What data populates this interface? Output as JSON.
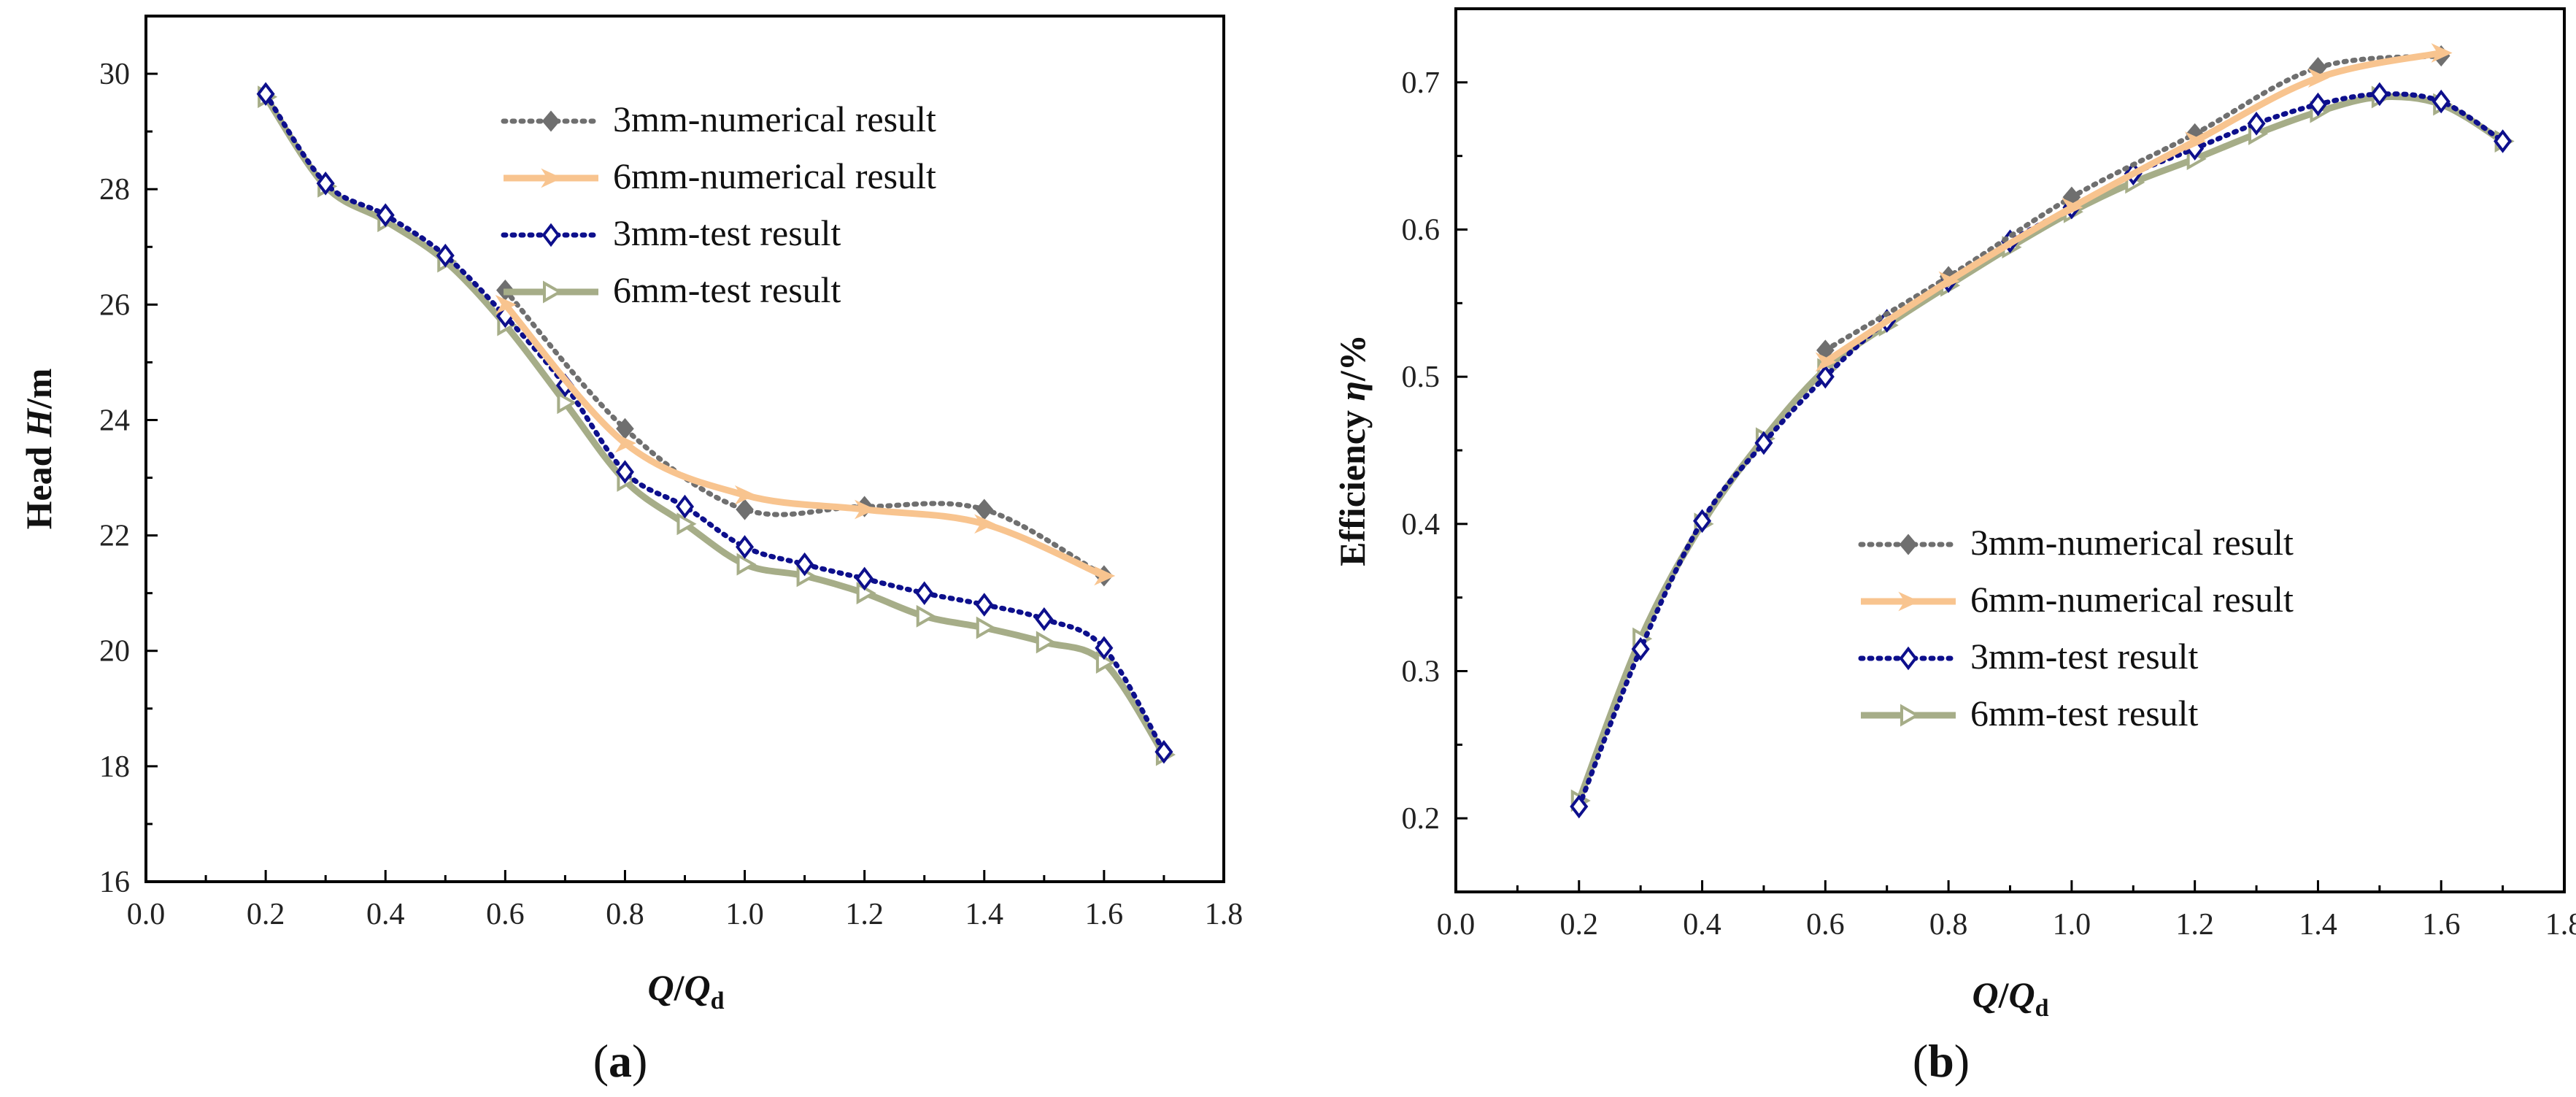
{
  "chart_data": [
    {
      "type": "line",
      "panel_label": "(a)",
      "panel_label_letter": "a",
      "ylabel_prefix": "Head ",
      "ylabel_symbol": "H",
      "ylabel_suffix": "/m",
      "xlabel_main": "Q",
      "xlabel_sep": "/",
      "xlabel_sub_base": "Q",
      "xlabel_subscript": "d",
      "xlim": [
        0.0,
        1.8
      ],
      "ylim": [
        16,
        31
      ],
      "xticks": [
        "0.0",
        "0.2",
        "0.4",
        "0.6",
        "0.8",
        "1.0",
        "1.2",
        "1.4",
        "1.6",
        "1.8"
      ],
      "yticks": [
        "16",
        "18",
        "20",
        "22",
        "24",
        "26",
        "28",
        "30"
      ],
      "legend_position": "top-right",
      "series": [
        {
          "name": "3mm-numerical result",
          "color": "#6f6f6f",
          "style": "dotted",
          "marker": "diamond-filled",
          "x": [
            0.6,
            0.8,
            1.0,
            1.2,
            1.4,
            1.6
          ],
          "y": [
            26.25,
            23.85,
            22.45,
            22.5,
            22.45,
            21.3
          ]
        },
        {
          "name": "6mm-numerical result",
          "color": "#f8c48f",
          "style": "solid",
          "marker": "arrow-right",
          "x": [
            0.6,
            0.8,
            1.0,
            1.2,
            1.4,
            1.6
          ],
          "y": [
            26.0,
            23.6,
            22.7,
            22.45,
            22.2,
            21.3
          ]
        },
        {
          "name": "3mm-test result",
          "color": "#0d0f8c",
          "style": "dotted",
          "marker": "diamond-open",
          "x": [
            0.2,
            0.3,
            0.4,
            0.5,
            0.6,
            0.7,
            0.8,
            0.9,
            1.0,
            1.1,
            1.2,
            1.3,
            1.4,
            1.5,
            1.6,
            1.7
          ],
          "y": [
            29.65,
            28.1,
            27.55,
            26.85,
            25.8,
            24.6,
            23.1,
            22.5,
            21.8,
            21.5,
            21.25,
            21.0,
            20.8,
            20.55,
            20.05,
            18.25
          ]
        },
        {
          "name": "6mm-test result",
          "color": "#a6ad88",
          "style": "solid",
          "marker": "triangle-right-open",
          "x": [
            0.2,
            0.3,
            0.4,
            0.5,
            0.6,
            0.7,
            0.8,
            0.9,
            1.0,
            1.1,
            1.2,
            1.3,
            1.4,
            1.5,
            1.6,
            1.7
          ],
          "y": [
            29.6,
            28.05,
            27.45,
            26.75,
            25.65,
            24.3,
            22.95,
            22.2,
            21.5,
            21.3,
            21.0,
            20.6,
            20.4,
            20.15,
            19.8,
            18.2
          ]
        }
      ]
    },
    {
      "type": "line",
      "panel_label": "(b)",
      "panel_label_letter": "b",
      "ylabel_prefix": "Efficiency ",
      "ylabel_symbol": "η",
      "ylabel_suffix": "/%",
      "xlabel_main": "Q",
      "xlabel_sep": "/",
      "xlabel_sub_base": "Q",
      "xlabel_subscript": "d",
      "xlim": [
        0.0,
        1.8
      ],
      "ylim": [
        0.15,
        0.75
      ],
      "xticks": [
        "0.0",
        "0.2",
        "0.4",
        "0.6",
        "0.8",
        "1.0",
        "1.2",
        "1.4",
        "1.6",
        "1.8"
      ],
      "yticks": [
        "0.2",
        "0.3",
        "0.4",
        "0.5",
        "0.6",
        "0.7"
      ],
      "legend_position": "bottom-right",
      "series": [
        {
          "name": "3mm-numerical result",
          "color": "#6f6f6f",
          "style": "dotted",
          "marker": "diamond-filled",
          "x": [
            0.6,
            0.8,
            1.0,
            1.2,
            1.4,
            1.6
          ],
          "y": [
            0.518,
            0.568,
            0.622,
            0.665,
            0.71,
            0.718
          ]
        },
        {
          "name": "6mm-numerical result",
          "color": "#f8c48f",
          "style": "solid",
          "marker": "arrow-right",
          "x": [
            0.6,
            0.8,
            1.0,
            1.2,
            1.4,
            1.6
          ],
          "y": [
            0.51,
            0.565,
            0.615,
            0.66,
            0.703,
            0.72
          ]
        },
        {
          "name": "3mm-test result",
          "color": "#0d0f8c",
          "style": "dotted",
          "marker": "diamond-open",
          "x": [
            0.2,
            0.3,
            0.4,
            0.5,
            0.6,
            0.7,
            0.8,
            0.9,
            1.0,
            1.1,
            1.2,
            1.3,
            1.4,
            1.5,
            1.6,
            1.7
          ],
          "y": [
            0.208,
            0.315,
            0.402,
            0.455,
            0.5,
            0.538,
            0.565,
            0.592,
            0.615,
            0.638,
            0.655,
            0.672,
            0.685,
            0.692,
            0.687,
            0.66
          ]
        },
        {
          "name": "6mm-test result",
          "color": "#a6ad88",
          "style": "solid",
          "marker": "triangle-right-open",
          "x": [
            0.2,
            0.3,
            0.4,
            0.5,
            0.6,
            0.7,
            0.8,
            0.9,
            1.0,
            1.1,
            1.2,
            1.3,
            1.4,
            1.5,
            1.6,
            1.7
          ],
          "y": [
            0.212,
            0.322,
            0.4,
            0.458,
            0.505,
            0.535,
            0.562,
            0.588,
            0.612,
            0.632,
            0.648,
            0.665,
            0.68,
            0.69,
            0.685,
            0.66
          ]
        }
      ]
    }
  ]
}
